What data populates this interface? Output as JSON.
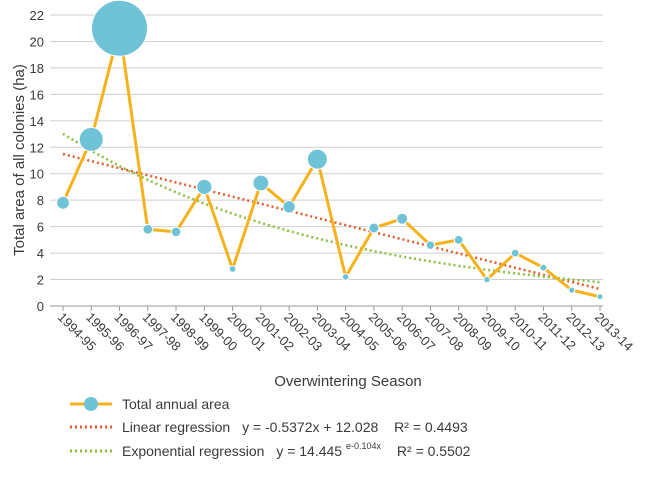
{
  "chart_data": {
    "type": "line",
    "ylabel": "Total area of all colonies (ha)",
    "xlabel": "Overwintering Season",
    "ylim": [
      0,
      22
    ],
    "yticks": [
      0,
      2,
      4,
      6,
      8,
      10,
      12,
      14,
      16,
      18,
      20,
      22
    ],
    "grid": "horizontal",
    "legend_position": "bottom",
    "categories": [
      "1994-95",
      "1995-96",
      "1996-97",
      "1997-98",
      "1998-99",
      "1999-00",
      "2000-01",
      "2001-02",
      "2002-03",
      "2003-04",
      "2004-05",
      "2005-06",
      "2006-07",
      "2007-08",
      "2008-09",
      "2009-10",
      "2010-11",
      "2011-12",
      "2012-13",
      "2013-14"
    ],
    "series": [
      {
        "name": "Total annual area",
        "values": [
          7.8,
          12.6,
          21.0,
          5.8,
          5.6,
          9.0,
          2.8,
          9.3,
          7.5,
          11.1,
          2.2,
          5.9,
          6.6,
          4.6,
          5.0,
          2.0,
          4.0,
          2.9,
          1.2,
          0.7
        ],
        "color": "#f5b21b",
        "marker_color": "#6ec3d6"
      }
    ],
    "regressions": [
      {
        "name": "Linear regression",
        "equation": "y = -0.5372x + 12.028",
        "r2_text": "R² = 0.4493",
        "slope": -0.5372,
        "intercept": 12.028,
        "color": "#e55b2a"
      },
      {
        "name": "Exponential regression",
        "equation_prefix": "y = 14.445",
        "equation_exponent": "e-0.104x",
        "r2_text": "R² = 0.5502",
        "a": 14.445,
        "b": -0.104,
        "color": "#8cbd3f"
      }
    ]
  }
}
